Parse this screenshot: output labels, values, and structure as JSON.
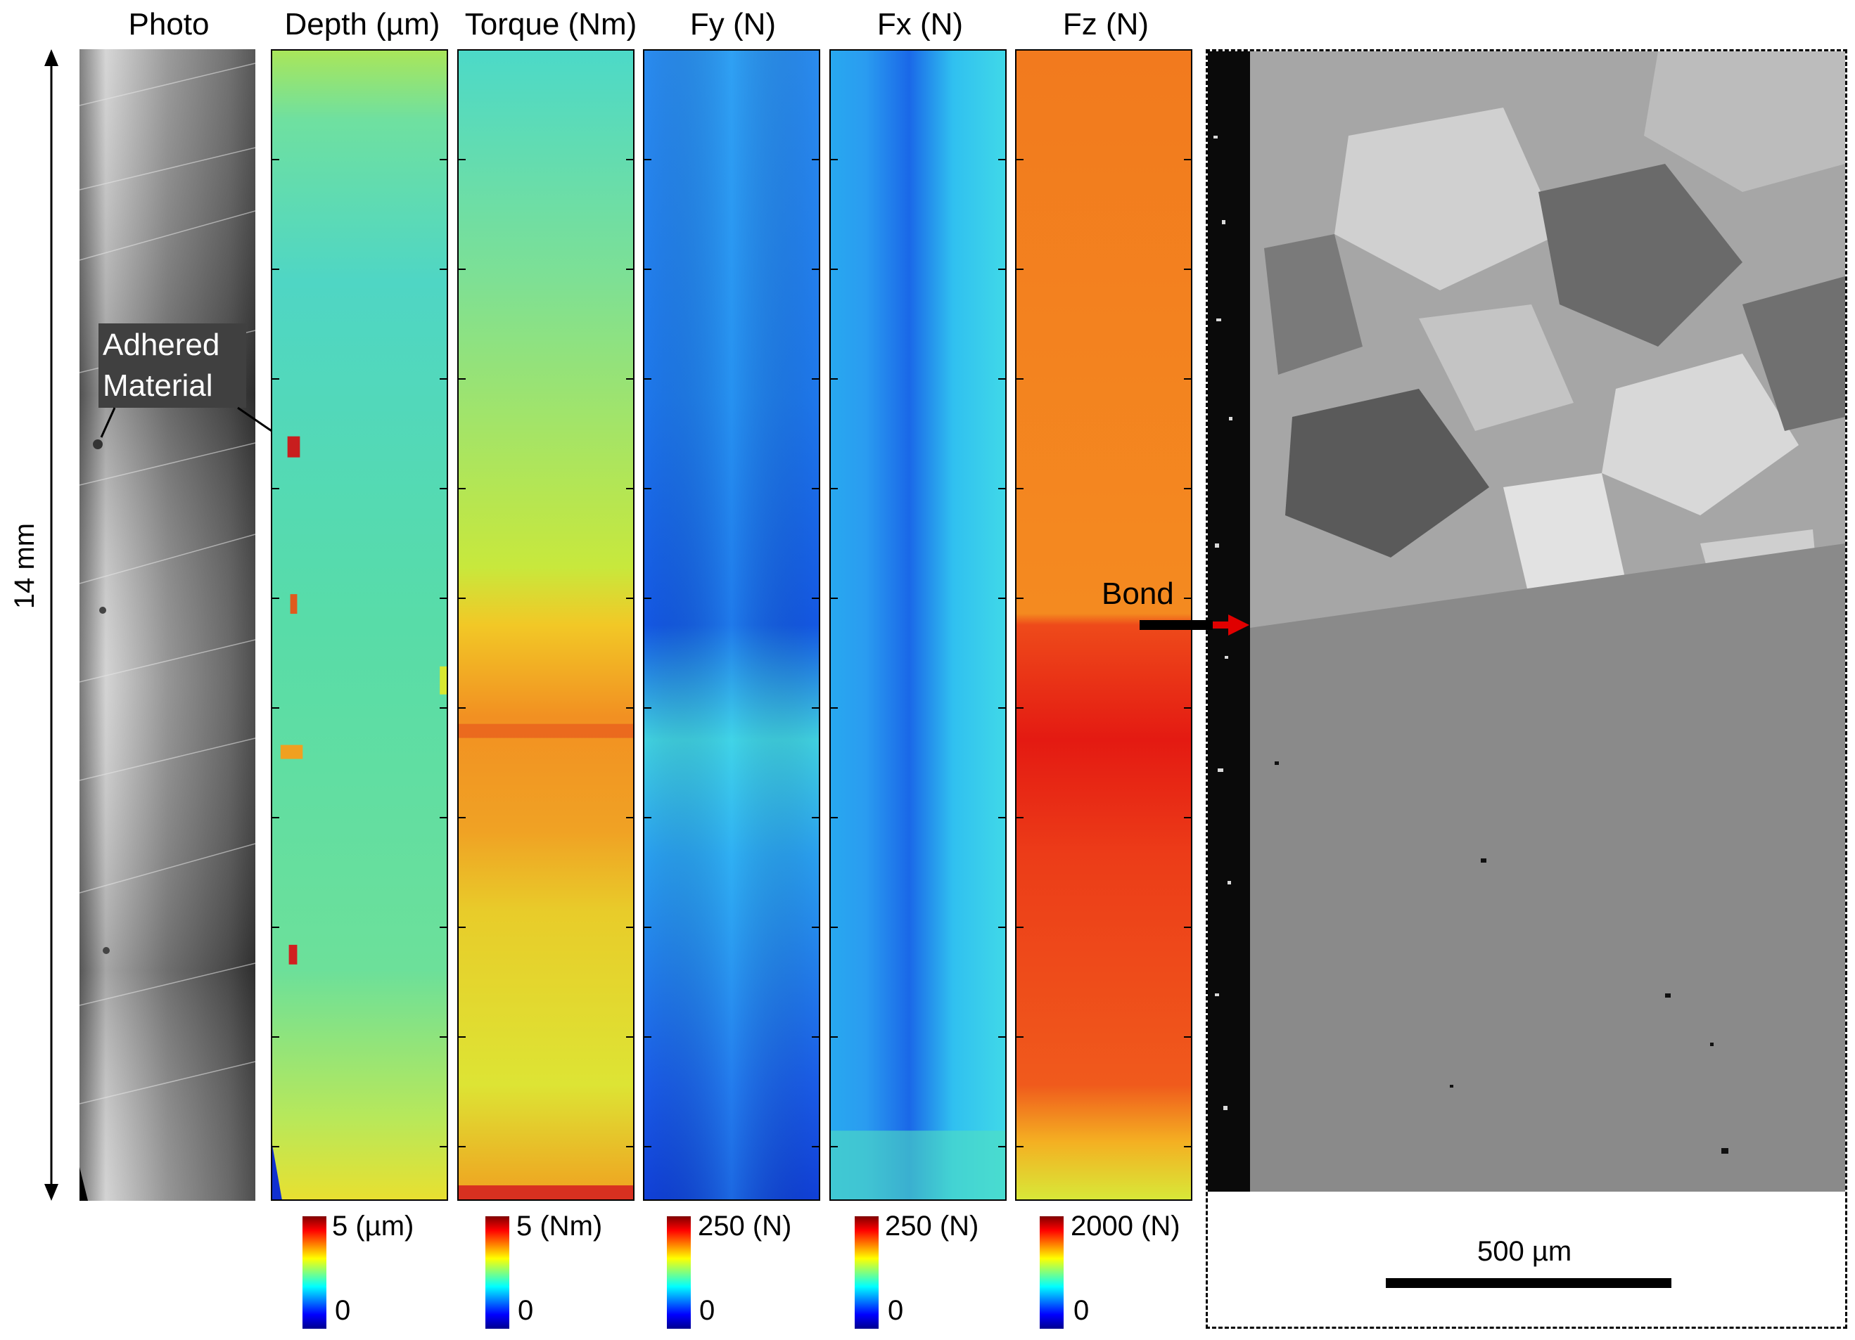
{
  "columns": {
    "photo": "Photo",
    "depth": "Depth (µm)",
    "torque": "Torque (Nm)",
    "fy": "Fy (N)",
    "fx": "Fx (N)",
    "fz": "Fz (N)"
  },
  "length_label": "14 mm",
  "annotation_adhered": [
    "Adhered",
    "Material"
  ],
  "annotation_bond": "Bond",
  "scale_bar": "500 µm",
  "colorbars": {
    "depth": {
      "max": "5 (µm)",
      "min": "0"
    },
    "torque": {
      "max": "5 (Nm)",
      "min": "0"
    },
    "fy": {
      "max": "250 (N)",
      "min": "0"
    },
    "fx": {
      "max": "250 (N)",
      "min": "0"
    },
    "fz": {
      "max": "2000 (N)",
      "min": "0"
    }
  },
  "colors": {
    "jet_blue": "#0000c8",
    "jet_red": "#c80000",
    "arrow_red": "#e00000"
  }
}
